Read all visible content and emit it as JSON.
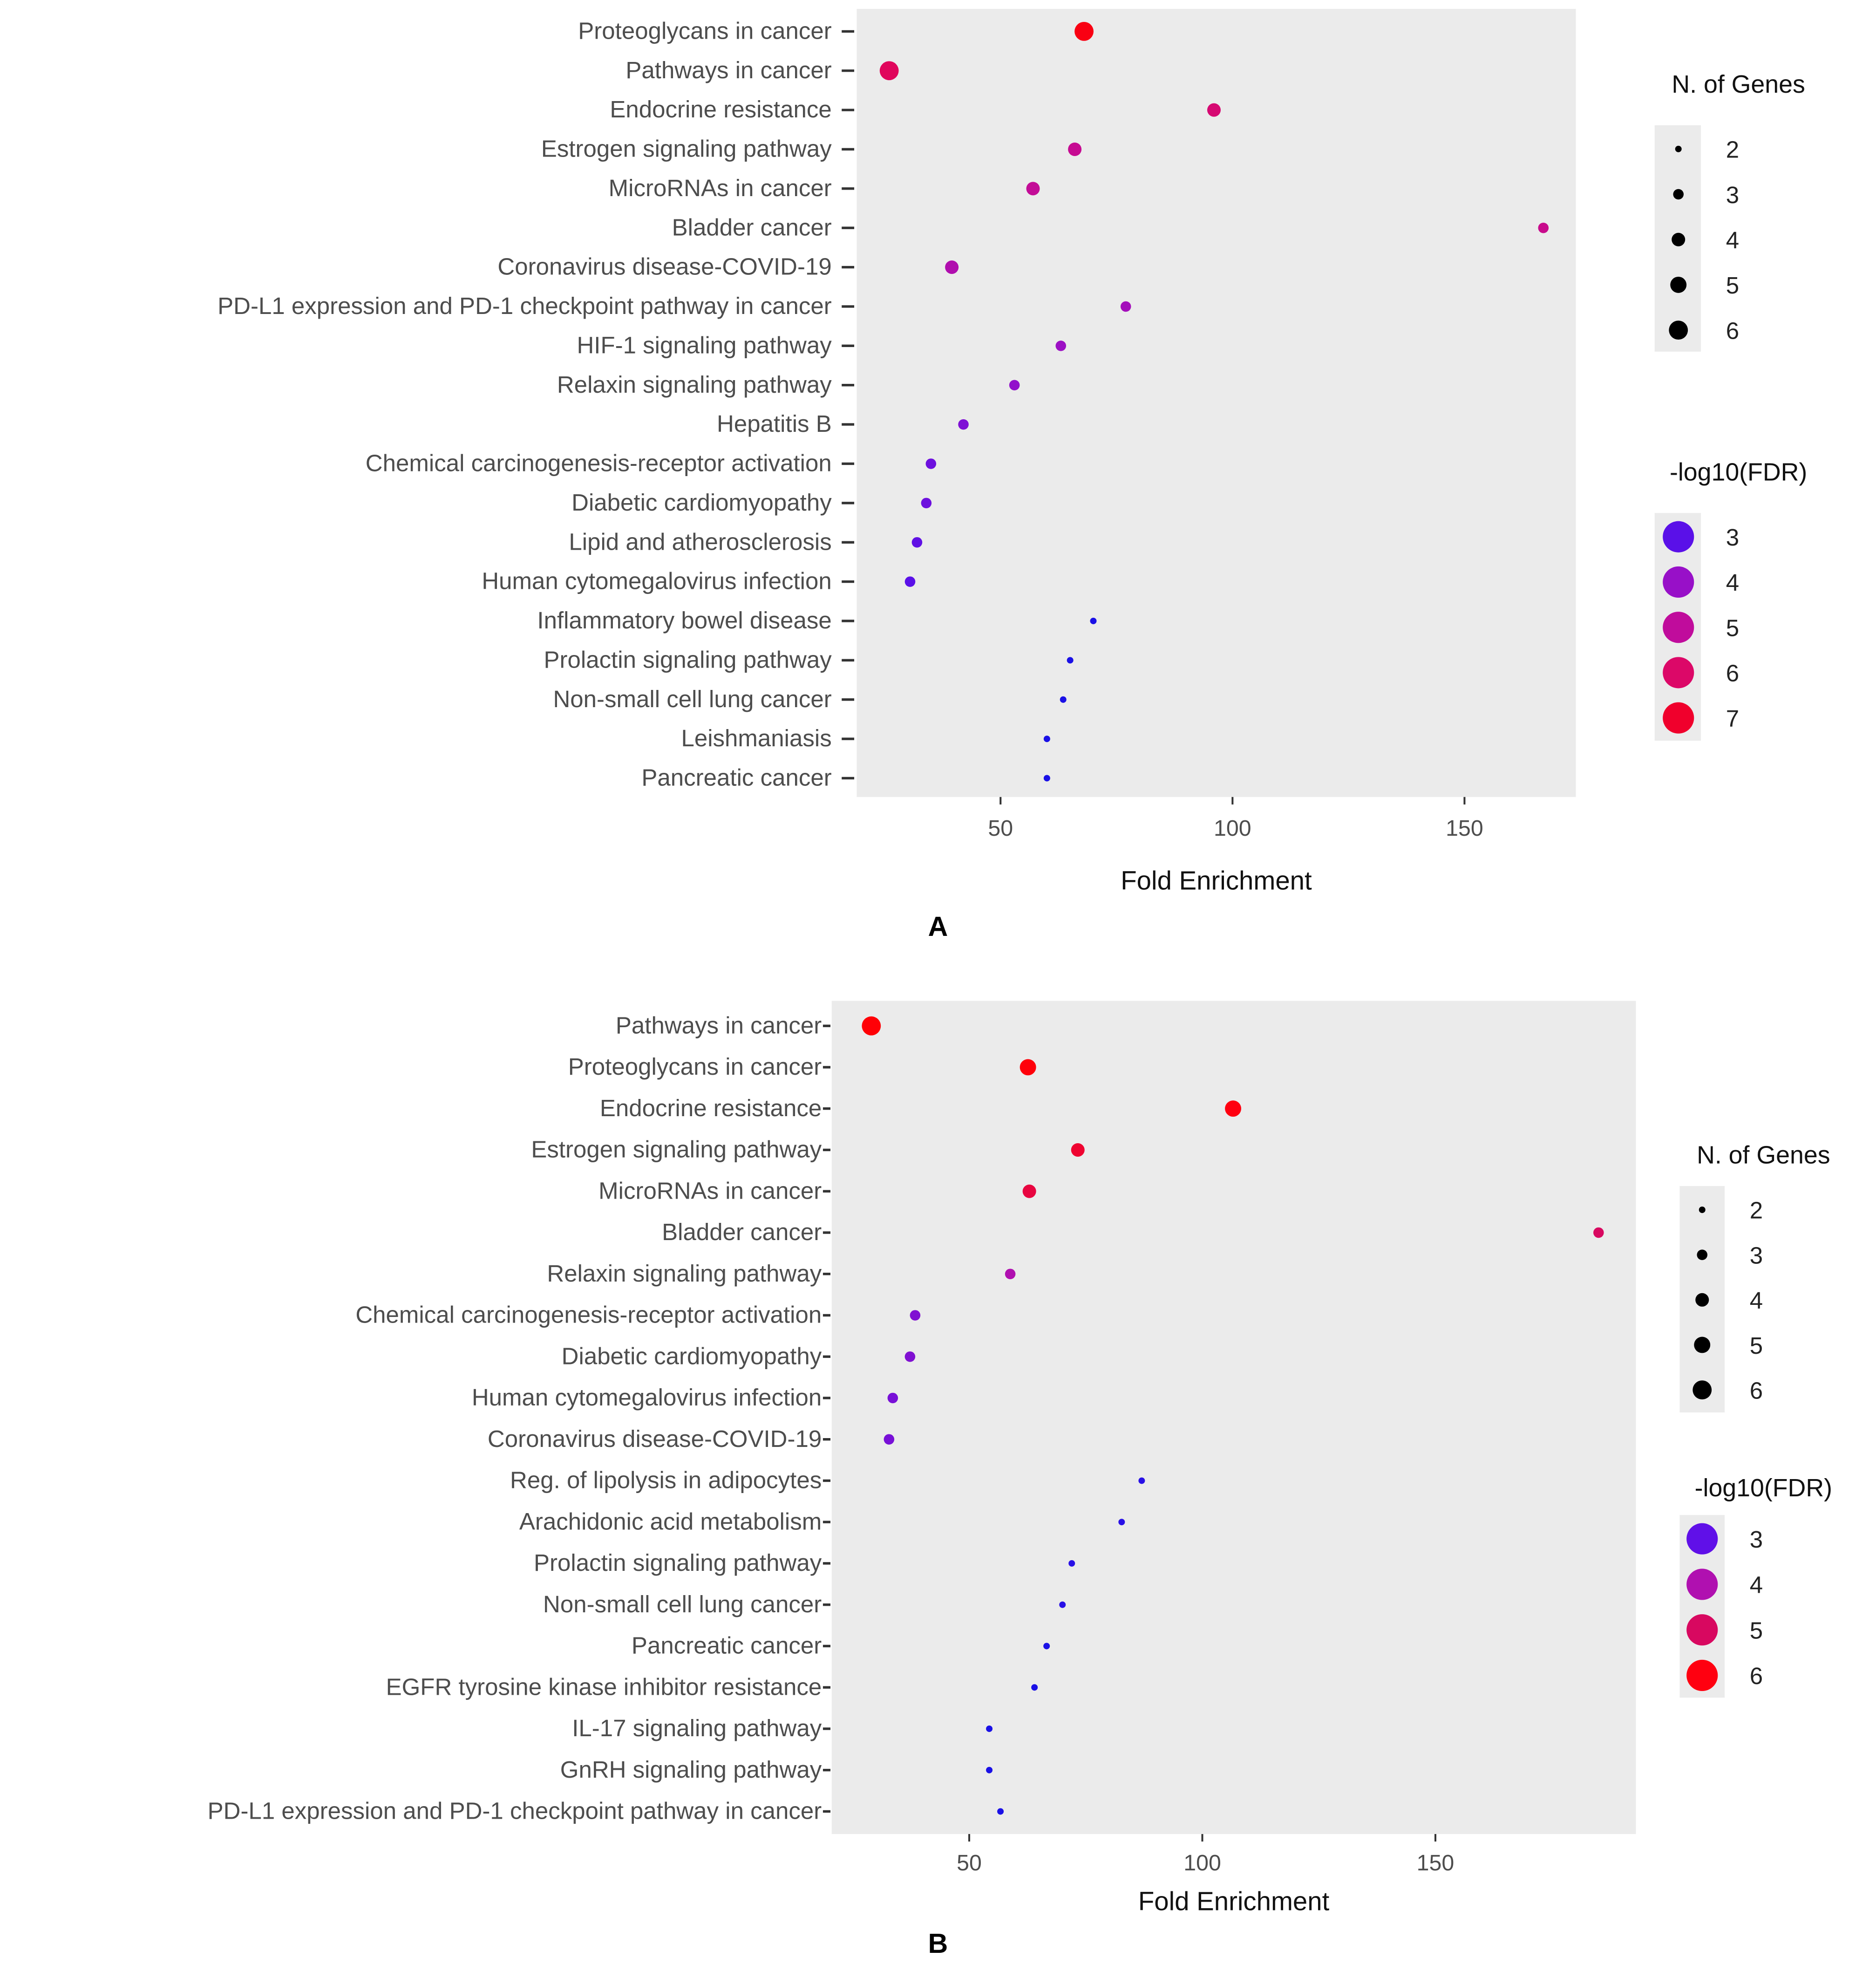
{
  "chart_data": [
    {
      "type": "scatter",
      "panel_label": "A",
      "xlabel": "Fold Enrichment",
      "ylabel": "",
      "xlim": [
        19,
        174
      ],
      "xticks": [
        50,
        100,
        150
      ],
      "grid": false,
      "legend_placement": "right",
      "size_legend": {
        "title": "N. of Genes",
        "values": [
          2,
          3,
          4,
          5,
          6
        ]
      },
      "color_legend": {
        "title": "-log10(FDR)",
        "values": [
          3,
          4,
          5,
          6,
          7
        ],
        "colors": [
          "#5a10e8",
          "#9810c8",
          "#c00c9c",
          "#dc0868",
          "#f0002c"
        ]
      },
      "color_scale": [
        [
          2.5,
          "#1a10e6"
        ],
        [
          3,
          "#5a10e8"
        ],
        [
          4,
          "#9810c8"
        ],
        [
          5,
          "#c00c9c"
        ],
        [
          6,
          "#dc0868"
        ],
        [
          7,
          "#f0002c"
        ],
        [
          7.5,
          "#ff0000"
        ]
      ],
      "points": [
        {
          "term": "Proteoglycans in cancer",
          "fold": 68,
          "genes": 6,
          "fdr": 7.3
        },
        {
          "term": "Pathways in cancer",
          "fold": 26,
          "genes": 6,
          "fdr": 6.2
        },
        {
          "term": "Endocrine resistance",
          "fold": 96,
          "genes": 4,
          "fdr": 5.8
        },
        {
          "term": "Estrogen signaling pathway",
          "fold": 66,
          "genes": 4,
          "fdr": 5.2
        },
        {
          "term": "MicroRNAs in cancer",
          "fold": 57,
          "genes": 4,
          "fdr": 5.1
        },
        {
          "term": "Bladder cancer",
          "fold": 167,
          "genes": 3,
          "fdr": 5.3
        },
        {
          "term": "Coronavirus disease-COVID-19",
          "fold": 39.5,
          "genes": 4,
          "fdr": 4.6
        },
        {
          "term": "PD-L1 expression and PD-1 checkpoint pathway in cancer",
          "fold": 77,
          "genes": 3,
          "fdr": 4.3
        },
        {
          "term": "HIF-1 signaling pathway",
          "fold": 63,
          "genes": 3,
          "fdr": 4.1
        },
        {
          "term": "Relaxin signaling pathway",
          "fold": 53,
          "genes": 3,
          "fdr": 3.9
        },
        {
          "term": "Hepatitis B",
          "fold": 42,
          "genes": 3,
          "fdr": 3.6
        },
        {
          "term": "Chemical carcinogenesis-receptor activation",
          "fold": 35,
          "genes": 3,
          "fdr": 3.3
        },
        {
          "term": "Diabetic cardiomyopathy",
          "fold": 34,
          "genes": 3,
          "fdr": 3.3
        },
        {
          "term": "Lipid and atherosclerosis",
          "fold": 32,
          "genes": 3,
          "fdr": 3.1
        },
        {
          "term": "Human cytomegalovirus infection",
          "fold": 30.5,
          "genes": 3,
          "fdr": 3.0
        },
        {
          "term": "Inflammatory bowel disease",
          "fold": 70,
          "genes": 2,
          "fdr": 2.5
        },
        {
          "term": "Prolactin signaling pathway",
          "fold": 65,
          "genes": 2,
          "fdr": 2.5
        },
        {
          "term": "Non-small cell lung cancer",
          "fold": 63.5,
          "genes": 2,
          "fdr": 2.5
        },
        {
          "term": "Leishmaniasis",
          "fold": 60,
          "genes": 2,
          "fdr": 2.5
        },
        {
          "term": "Pancreatic cancer",
          "fold": 60,
          "genes": 2,
          "fdr": 2.5
        }
      ]
    },
    {
      "type": "scatter",
      "panel_label": "B",
      "xlabel": "Fold Enrichment",
      "ylabel": "",
      "xlim": [
        20.5,
        193
      ],
      "xticks": [
        50,
        100,
        150
      ],
      "grid": false,
      "legend_placement": "right",
      "size_legend": {
        "title": "N. of Genes",
        "values": [
          2,
          3,
          4,
          5,
          6
        ]
      },
      "color_legend": {
        "title": "-log10(FDR)",
        "values": [
          3,
          4,
          5,
          6
        ],
        "colors": [
          "#6010e8",
          "#b010b0",
          "#d80860",
          "#ff0010"
        ]
      },
      "color_scale": [
        [
          2.5,
          "#1a10e6"
        ],
        [
          3,
          "#6010e8"
        ],
        [
          4,
          "#b010b0"
        ],
        [
          5,
          "#d80860"
        ],
        [
          6,
          "#ff0010"
        ],
        [
          6.5,
          "#ff0000"
        ]
      ],
      "points": [
        {
          "term": "Pathways in cancer",
          "fold": 29,
          "genes": 6,
          "fdr": 6.3
        },
        {
          "term": "Proteoglycans in cancer",
          "fold": 62.6,
          "genes": 5,
          "fdr": 6.2
        },
        {
          "term": "Endocrine resistance",
          "fold": 106.6,
          "genes": 5,
          "fdr": 6.0
        },
        {
          "term": "Estrogen signaling pathway",
          "fold": 73.3,
          "genes": 4,
          "fdr": 5.6
        },
        {
          "term": "MicroRNAs in cancer",
          "fold": 62.9,
          "genes": 4,
          "fdr": 5.4
        },
        {
          "term": "Bladder cancer",
          "fold": 185,
          "genes": 3,
          "fdr": 5.0
        },
        {
          "term": "Relaxin signaling pathway",
          "fold": 58.8,
          "genes": 3,
          "fdr": 4.0
        },
        {
          "term": "Chemical carcinogenesis-receptor activation",
          "fold": 38.4,
          "genes": 3,
          "fdr": 3.4
        },
        {
          "term": "Diabetic cardiomyopathy",
          "fold": 37.3,
          "genes": 3,
          "fdr": 3.4
        },
        {
          "term": "Human cytomegalovirus infection",
          "fold": 33.6,
          "genes": 3,
          "fdr": 3.3
        },
        {
          "term": "Coronavirus disease-COVID-19",
          "fold": 32.8,
          "genes": 3,
          "fdr": 3.3
        },
        {
          "term": "Reg. of lipolysis in adipocytes",
          "fold": 87,
          "genes": 2,
          "fdr": 2.6
        },
        {
          "term": "Arachidonic acid metabolism",
          "fold": 82.7,
          "genes": 2,
          "fdr": 2.6
        },
        {
          "term": "Prolactin signaling pathway",
          "fold": 72,
          "genes": 2,
          "fdr": 2.6
        },
        {
          "term": "Non-small cell lung cancer",
          "fold": 70,
          "genes": 2,
          "fdr": 2.6
        },
        {
          "term": "Pancreatic cancer",
          "fold": 66.6,
          "genes": 2,
          "fdr": 2.5
        },
        {
          "term": "EGFR tyrosine kinase inhibitor resistance",
          "fold": 64,
          "genes": 2,
          "fdr": 2.5
        },
        {
          "term": "IL-17 signaling pathway",
          "fold": 54.3,
          "genes": 2,
          "fdr": 2.5
        },
        {
          "term": "GnRH signaling pathway",
          "fold": 54.3,
          "genes": 2,
          "fdr": 2.5
        },
        {
          "term": "PD-L1 expression and PD-1 checkpoint pathway in cancer",
          "fold": 56.7,
          "genes": 2,
          "fdr": 2.5
        }
      ]
    }
  ]
}
